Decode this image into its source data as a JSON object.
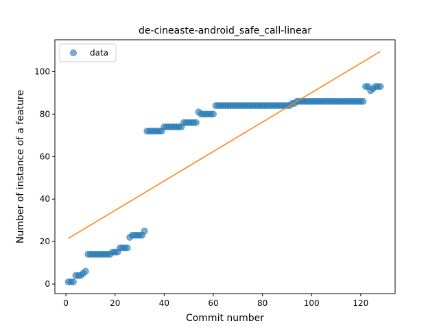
{
  "chart_data": {
    "type": "scatter",
    "title": "de-cineaste-android_safe_call-linear",
    "xlabel": "Commit number",
    "ylabel": "Number of instance of a feature",
    "xlim": [
      -4.5,
      134
    ],
    "ylim": [
      -4.5,
      115
    ],
    "xticks": [
      0,
      20,
      40,
      60,
      80,
      100,
      120
    ],
    "yticks": [
      0,
      20,
      40,
      60,
      80,
      100
    ],
    "xtick_labels": [
      "0",
      "20",
      "40",
      "60",
      "80",
      "100",
      "120"
    ],
    "ytick_labels": [
      "0",
      "20",
      "40",
      "60",
      "80",
      "100"
    ],
    "legend": {
      "position": "top-left",
      "entries": [
        "data"
      ]
    },
    "grid": false,
    "colors": {
      "data": "#1f77b4",
      "fit": "#ff7f0e"
    },
    "series": [
      {
        "name": "data",
        "kind": "points",
        "x": [
          1,
          2,
          3,
          4,
          5,
          6,
          7,
          8,
          9,
          10,
          11,
          12,
          13,
          14,
          15,
          16,
          17,
          18,
          19,
          20,
          21,
          22,
          23,
          24,
          25,
          26,
          27,
          28,
          29,
          30,
          31,
          32,
          33,
          34,
          35,
          36,
          37,
          38,
          39,
          40,
          41,
          42,
          43,
          44,
          45,
          46,
          47,
          48,
          49,
          50,
          51,
          52,
          53,
          54,
          55,
          56,
          57,
          58,
          59,
          60,
          61,
          62,
          63,
          64,
          65,
          66,
          67,
          68,
          69,
          70,
          71,
          72,
          73,
          74,
          75,
          76,
          77,
          78,
          79,
          80,
          81,
          82,
          83,
          84,
          85,
          86,
          87,
          88,
          89,
          90,
          91,
          92,
          93,
          94,
          95,
          96,
          97,
          98,
          99,
          100,
          101,
          102,
          103,
          104,
          105,
          106,
          107,
          108,
          109,
          110,
          111,
          112,
          113,
          114,
          115,
          116,
          117,
          118,
          119,
          120,
          121,
          122,
          123,
          124,
          125,
          126,
          127,
          128
        ],
        "y": [
          1,
          1,
          1,
          4,
          4,
          4,
          5,
          6,
          14,
          14,
          14,
          14,
          14,
          14,
          14,
          14,
          14,
          14,
          15,
          15,
          15,
          17,
          17,
          17,
          17,
          22,
          23,
          23,
          23,
          23,
          23,
          25,
          72,
          72,
          72,
          72,
          72,
          72,
          72,
          74,
          74,
          74,
          74,
          74,
          74,
          74,
          74,
          76,
          76,
          76,
          76,
          76,
          76,
          81,
          80,
          80,
          80,
          80,
          80,
          80,
          84,
          84,
          84,
          84,
          84,
          84,
          84,
          84,
          84,
          84,
          84,
          84,
          84,
          84,
          84,
          84,
          84,
          84,
          84,
          84,
          84,
          84,
          84,
          84,
          84,
          84,
          84,
          84,
          84,
          84,
          84,
          85,
          85,
          86,
          86,
          86,
          86,
          86,
          86,
          86,
          86,
          86,
          86,
          86,
          86,
          86,
          86,
          86,
          86,
          86,
          86,
          86,
          86,
          86,
          86,
          86,
          86,
          86,
          86,
          86,
          86,
          93,
          93,
          91,
          92,
          93,
          93,
          93
        ]
      },
      {
        "kind": "line",
        "x": [
          1,
          128
        ],
        "y": [
          21.5,
          109.5
        ]
      }
    ]
  }
}
